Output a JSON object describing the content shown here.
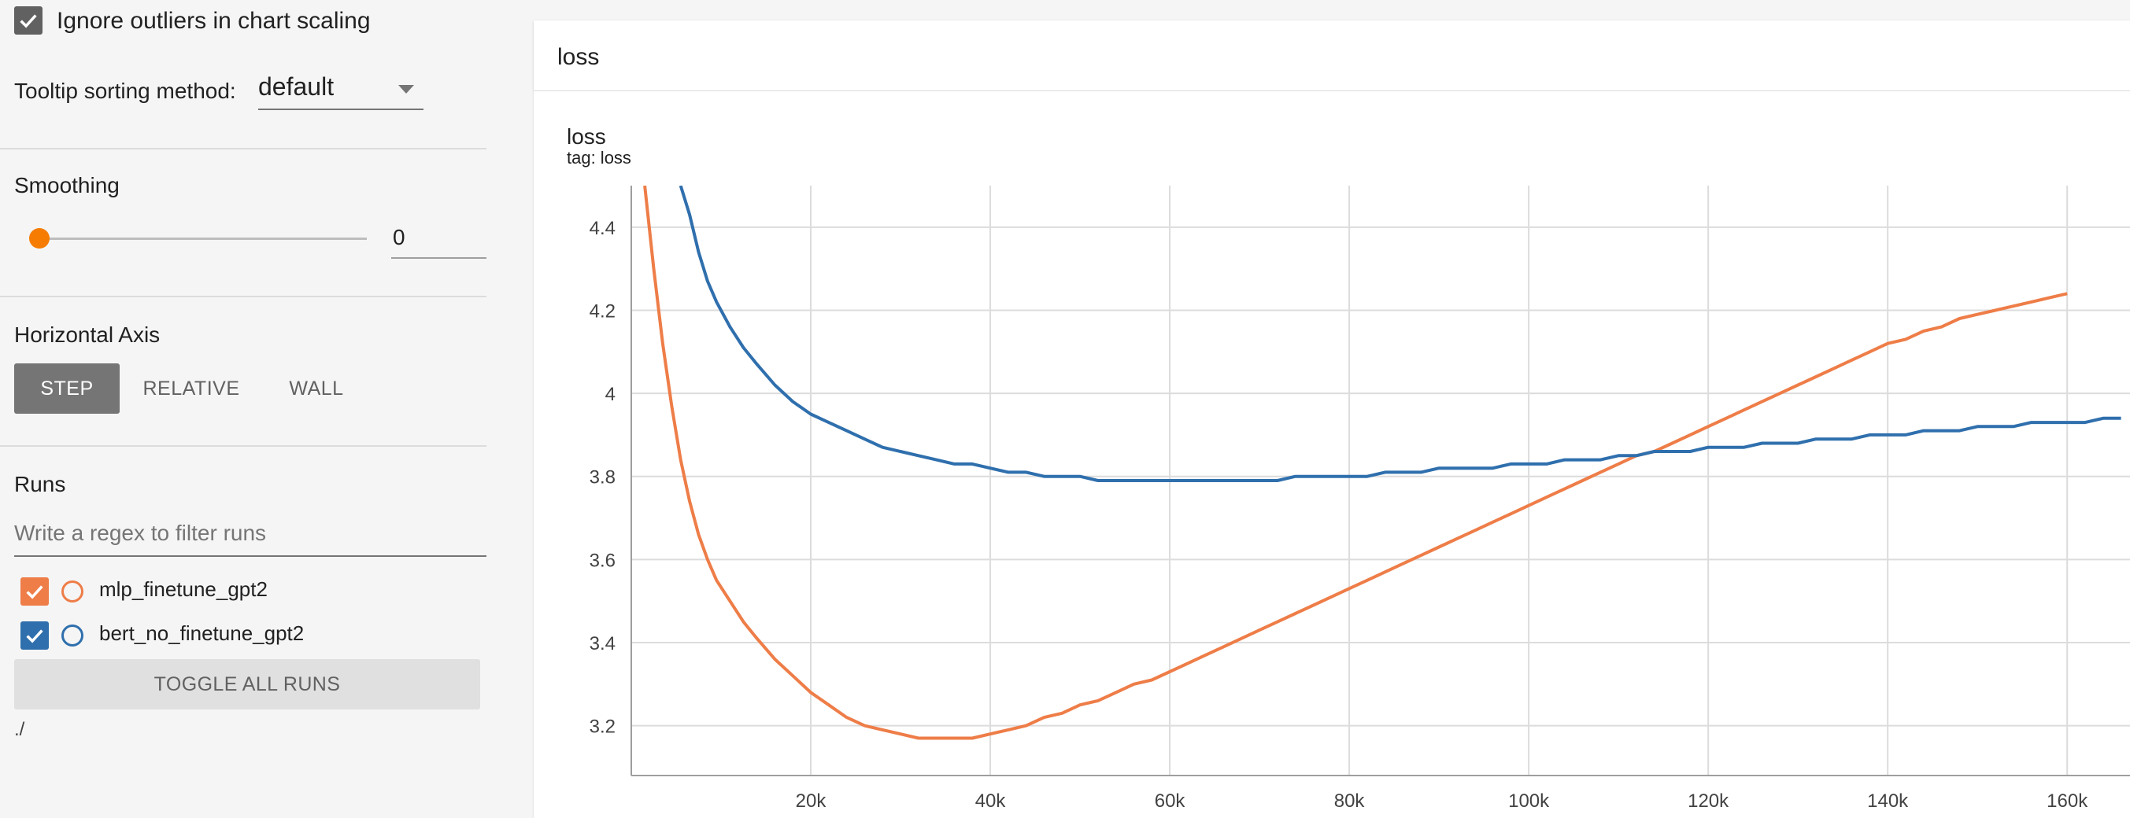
{
  "sidebar": {
    "ignore_outliers": {
      "label": "Ignore outliers in chart scaling",
      "checked": true
    },
    "tooltip_sorting": {
      "label": "Tooltip sorting method:",
      "value": "default"
    },
    "smoothing": {
      "label": "Smoothing",
      "value": "0",
      "level": 0
    },
    "horizontal_axis": {
      "label": "Horizontal Axis",
      "options": [
        "STEP",
        "RELATIVE",
        "WALL"
      ],
      "selected": "STEP"
    },
    "runs": {
      "label": "Runs",
      "filter_placeholder": "Write a regex to filter runs",
      "items": [
        {
          "name": "mlp_finetune_gpt2",
          "color": "#ee7d48",
          "checked": true
        },
        {
          "name": "bert_no_finetune_gpt2",
          "color": "#2f6fad",
          "checked": true
        }
      ],
      "toggle_label": "TOGGLE ALL RUNS",
      "log_dir": "./"
    }
  },
  "card": {
    "header_title": "loss",
    "chart_title": "loss",
    "chart_tag": "tag: loss"
  },
  "chart_data": {
    "type": "line",
    "title": "loss",
    "subtitle": "tag: loss",
    "xlabel": "",
    "ylabel": "",
    "xlim": [
      0,
      167000
    ],
    "ylim": [
      3.08,
      4.5
    ],
    "x_ticks": [
      20000,
      40000,
      60000,
      80000,
      100000,
      120000,
      140000,
      160000
    ],
    "x_tick_labels": [
      "20k",
      "40k",
      "60k",
      "80k",
      "100k",
      "120k",
      "140k",
      "160k"
    ],
    "y_ticks": [
      3.2,
      3.4,
      3.6,
      3.8,
      4.0,
      4.2,
      4.4
    ],
    "y_tick_labels": [
      "3.2",
      "3.4",
      "3.6",
      "3.8",
      "4",
      "4.2",
      "4.4"
    ],
    "grid": true,
    "series": [
      {
        "name": "mlp_finetune_gpt2",
        "color": "#ee7d48",
        "x": [
          1500,
          2500,
          3500,
          4500,
          5500,
          6500,
          7500,
          8500,
          9500,
          11000,
          12500,
          14000,
          16000,
          18000,
          20000,
          22000,
          24000,
          26000,
          28000,
          30000,
          32000,
          34000,
          36000,
          38000,
          40000,
          42000,
          44000,
          46000,
          48000,
          50000,
          52000,
          54000,
          56000,
          58000,
          60000,
          62000,
          64000,
          66000,
          68000,
          70000,
          72000,
          74000,
          76000,
          78000,
          80000,
          82000,
          84000,
          86000,
          88000,
          90000,
          92000,
          94000,
          96000,
          98000,
          100000,
          102000,
          104000,
          106000,
          108000,
          110000,
          112000,
          114000,
          116000,
          118000,
          120000,
          122000,
          124000,
          126000,
          128000,
          130000,
          132000,
          134000,
          136000,
          138000,
          140000,
          142000,
          144000,
          146000,
          148000,
          150000,
          152000,
          154000,
          156000,
          158000,
          160000
        ],
        "values": [
          4.5,
          4.3,
          4.12,
          3.97,
          3.84,
          3.74,
          3.66,
          3.6,
          3.55,
          3.5,
          3.45,
          3.41,
          3.36,
          3.32,
          3.28,
          3.25,
          3.22,
          3.2,
          3.19,
          3.18,
          3.17,
          3.17,
          3.17,
          3.17,
          3.18,
          3.19,
          3.2,
          3.22,
          3.23,
          3.25,
          3.26,
          3.28,
          3.3,
          3.31,
          3.33,
          3.35,
          3.37,
          3.39,
          3.41,
          3.43,
          3.45,
          3.47,
          3.49,
          3.51,
          3.53,
          3.55,
          3.57,
          3.59,
          3.61,
          3.63,
          3.65,
          3.67,
          3.69,
          3.71,
          3.73,
          3.75,
          3.77,
          3.79,
          3.81,
          3.83,
          3.85,
          3.86,
          3.88,
          3.9,
          3.92,
          3.94,
          3.96,
          3.98,
          4.0,
          4.02,
          4.04,
          4.06,
          4.08,
          4.1,
          4.12,
          4.13,
          4.15,
          4.16,
          4.18,
          4.19,
          4.2,
          4.21,
          4.22,
          4.23,
          4.24
        ]
      },
      {
        "name": "bert_no_finetune_gpt2",
        "color": "#2f6fad",
        "x": [
          5500,
          6500,
          7500,
          8500,
          9500,
          11000,
          12500,
          14000,
          16000,
          18000,
          20000,
          22000,
          24000,
          26000,
          28000,
          30000,
          32000,
          34000,
          36000,
          38000,
          40000,
          42000,
          44000,
          46000,
          48000,
          50000,
          52000,
          54000,
          56000,
          58000,
          60000,
          62000,
          64000,
          66000,
          68000,
          70000,
          72000,
          74000,
          76000,
          78000,
          80000,
          82000,
          84000,
          86000,
          88000,
          90000,
          92000,
          94000,
          96000,
          98000,
          100000,
          102000,
          104000,
          106000,
          108000,
          110000,
          112000,
          114000,
          116000,
          118000,
          120000,
          122000,
          124000,
          126000,
          128000,
          130000,
          132000,
          134000,
          136000,
          138000,
          140000,
          142000,
          144000,
          146000,
          148000,
          150000,
          152000,
          154000,
          156000,
          158000,
          160000,
          162000,
          164000,
          166000
        ],
        "values": [
          4.5,
          4.43,
          4.34,
          4.27,
          4.22,
          4.16,
          4.11,
          4.07,
          4.02,
          3.98,
          3.95,
          3.93,
          3.91,
          3.89,
          3.87,
          3.86,
          3.85,
          3.84,
          3.83,
          3.83,
          3.82,
          3.81,
          3.81,
          3.8,
          3.8,
          3.8,
          3.79,
          3.79,
          3.79,
          3.79,
          3.79,
          3.79,
          3.79,
          3.79,
          3.79,
          3.79,
          3.79,
          3.8,
          3.8,
          3.8,
          3.8,
          3.8,
          3.81,
          3.81,
          3.81,
          3.82,
          3.82,
          3.82,
          3.82,
          3.83,
          3.83,
          3.83,
          3.84,
          3.84,
          3.84,
          3.85,
          3.85,
          3.86,
          3.86,
          3.86,
          3.87,
          3.87,
          3.87,
          3.88,
          3.88,
          3.88,
          3.89,
          3.89,
          3.89,
          3.9,
          3.9,
          3.9,
          3.91,
          3.91,
          3.91,
          3.92,
          3.92,
          3.92,
          3.93,
          3.93,
          3.93,
          3.93,
          3.94,
          3.94
        ]
      }
    ]
  }
}
